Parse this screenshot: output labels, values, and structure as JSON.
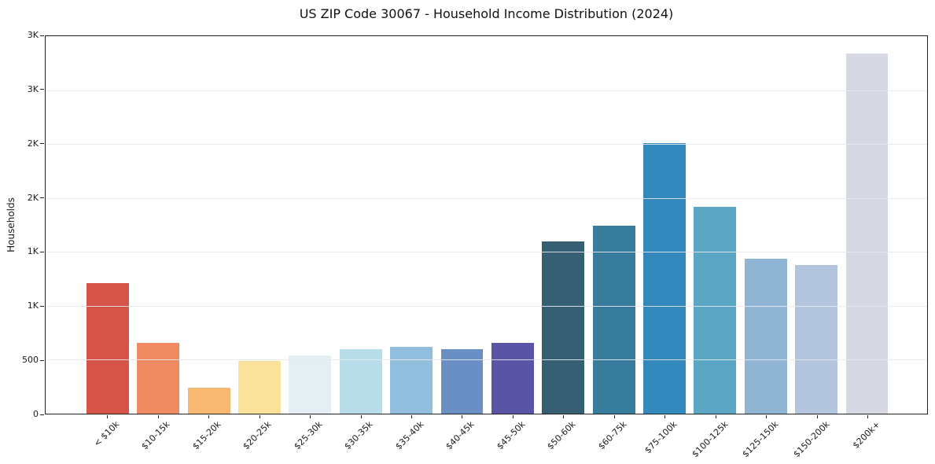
{
  "chart": {
    "title": "US ZIP Code 30067 - Household Income Distribution (2024)",
    "ylabel": "Households"
  },
  "chart_data": {
    "type": "bar",
    "title": "US ZIP Code 30067 - Household Income Distribution (2024)",
    "xlabel": "",
    "ylabel": "Households",
    "ylim": [
      0,
      3500
    ],
    "grid": true,
    "grid_color": "#e8e8ee",
    "legend": "none",
    "categories": [
      "< $10k",
      "$10-15k",
      "$15-20k",
      "$20-25k",
      "$25-30k",
      "$30-35k",
      "$35-40k",
      "$40-45k",
      "$45-50k",
      "$50-60k",
      "$60-75k",
      "$75-100k",
      "$100-125k",
      "$125-150k",
      "$150-200k",
      "$200k+"
    ],
    "values": [
      1210,
      660,
      240,
      490,
      540,
      595,
      620,
      600,
      655,
      1600,
      1745,
      2510,
      1915,
      1435,
      1375,
      3340
    ],
    "bar_colors": [
      "#d65548",
      "#ef8a62",
      "#f9b871",
      "#fbe29b",
      "#e3eff3",
      "#b9dce9",
      "#90bedc",
      "#6a8fc4",
      "#5a54a6",
      "#365f74",
      "#377c9c",
      "#3389bd",
      "#5ba6c4",
      "#90b5d4",
      "#b3c5dc",
      "#d6d8e4"
    ],
    "yticks": [
      {
        "value": 0,
        "label": "0"
      },
      {
        "value": 500,
        "label": "500"
      },
      {
        "value": 1000,
        "label": "1K"
      },
      {
        "value": 1500,
        "label": "1K"
      },
      {
        "value": 2000,
        "label": "2K"
      },
      {
        "value": 2500,
        "label": "2K"
      },
      {
        "value": 3000,
        "label": "3K"
      },
      {
        "value": 3500,
        "label": "3K"
      }
    ]
  }
}
